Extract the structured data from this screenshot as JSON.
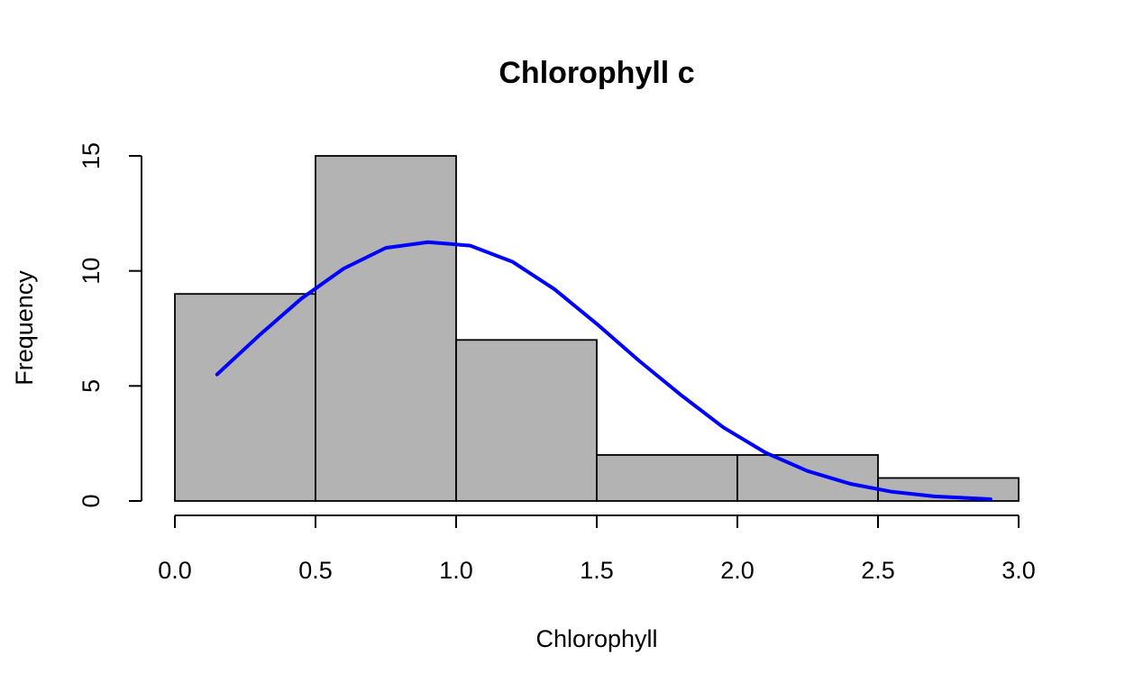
{
  "colors": {
    "bar_fill": "#b3b3b3",
    "bar_stroke": "#000000",
    "curve": "#0000ff"
  },
  "chart_data": {
    "type": "bar",
    "title": "Chlorophyll c",
    "xlabel": "Chlorophyll",
    "ylabel": "Frequency",
    "bins": [
      {
        "start": 0.0,
        "end": 0.5,
        "count": 9
      },
      {
        "start": 0.5,
        "end": 1.0,
        "count": 15
      },
      {
        "start": 1.0,
        "end": 1.5,
        "count": 7
      },
      {
        "start": 1.5,
        "end": 2.0,
        "count": 2
      },
      {
        "start": 2.0,
        "end": 2.5,
        "count": 2
      },
      {
        "start": 2.5,
        "end": 3.0,
        "count": 1
      }
    ],
    "xlim": [
      0.0,
      3.0
    ],
    "ylim": [
      0,
      15
    ],
    "x_ticks": [
      "0.0",
      "0.5",
      "1.0",
      "1.5",
      "2.0",
      "2.5",
      "3.0"
    ],
    "y_ticks": [
      "0",
      "5",
      "10",
      "15"
    ],
    "overlay_curve": {
      "type": "line",
      "x": [
        0.15,
        0.3,
        0.45,
        0.6,
        0.75,
        0.9,
        1.05,
        1.2,
        1.35,
        1.5,
        1.65,
        1.8,
        1.95,
        2.1,
        2.25,
        2.4,
        2.55,
        2.7,
        2.9
      ],
      "y": [
        5.5,
        7.2,
        8.8,
        10.1,
        11.0,
        11.25,
        11.1,
        10.4,
        9.2,
        7.7,
        6.1,
        4.6,
        3.2,
        2.1,
        1.3,
        0.75,
        0.4,
        0.2,
        0.08
      ]
    },
    "grid": false,
    "legend": "none"
  }
}
